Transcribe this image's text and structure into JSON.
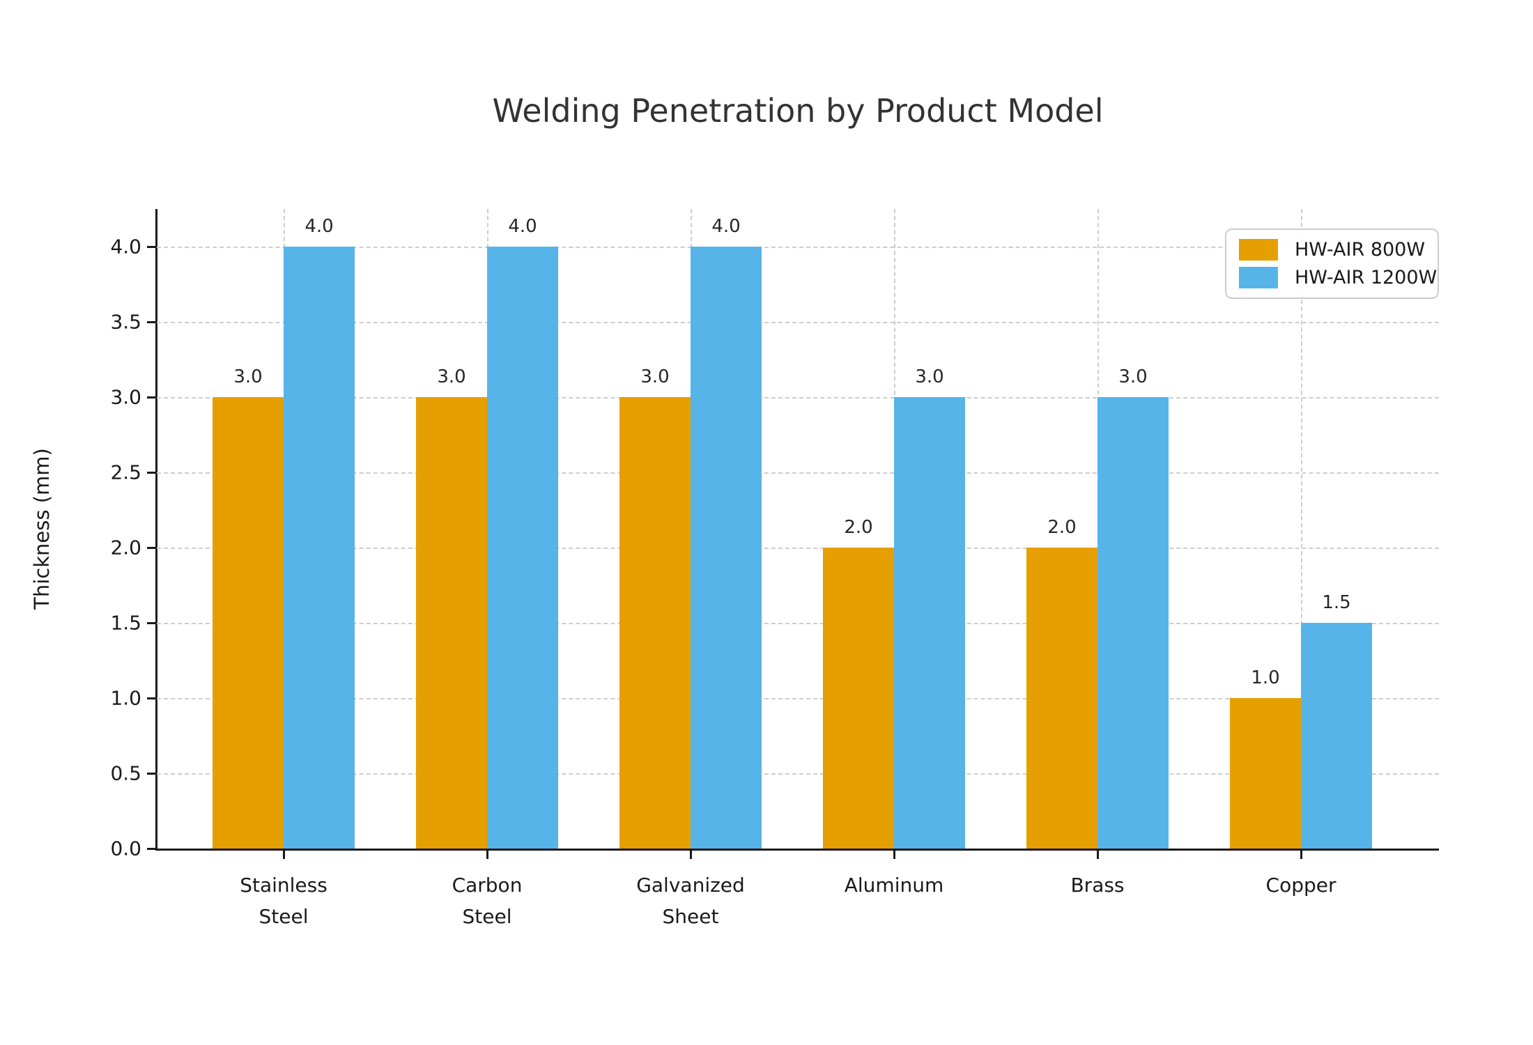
{
  "chart_data": {
    "type": "bar",
    "title": "Welding Penetration by Product Model",
    "xlabel": "",
    "ylabel": "Thickness (mm)",
    "categories": [
      "Stainless\nSteel",
      "Carbon\nSteel",
      "Galvanized\nSheet",
      "Aluminum",
      "Brass",
      "Copper"
    ],
    "series": [
      {
        "name": "HW-AIR 800W",
        "color": "#E69F00",
        "values": [
          3.0,
          3.0,
          3.0,
          2.0,
          2.0,
          1.0
        ]
      },
      {
        "name": "HW-AIR 1200W",
        "color": "#56B4E9",
        "values": [
          4.0,
          4.0,
          4.0,
          3.0,
          3.0,
          1.5
        ]
      }
    ],
    "yticks": [
      0.0,
      0.5,
      1.0,
      1.5,
      2.0,
      2.5,
      3.0,
      3.5,
      4.0
    ],
    "ylim": [
      0,
      4.25
    ],
    "grid": true,
    "grid_color": "#cdcdcd",
    "axis_color": "#1a1a1a",
    "legend_position": "upper right",
    "value_label_decimals": 1
  }
}
